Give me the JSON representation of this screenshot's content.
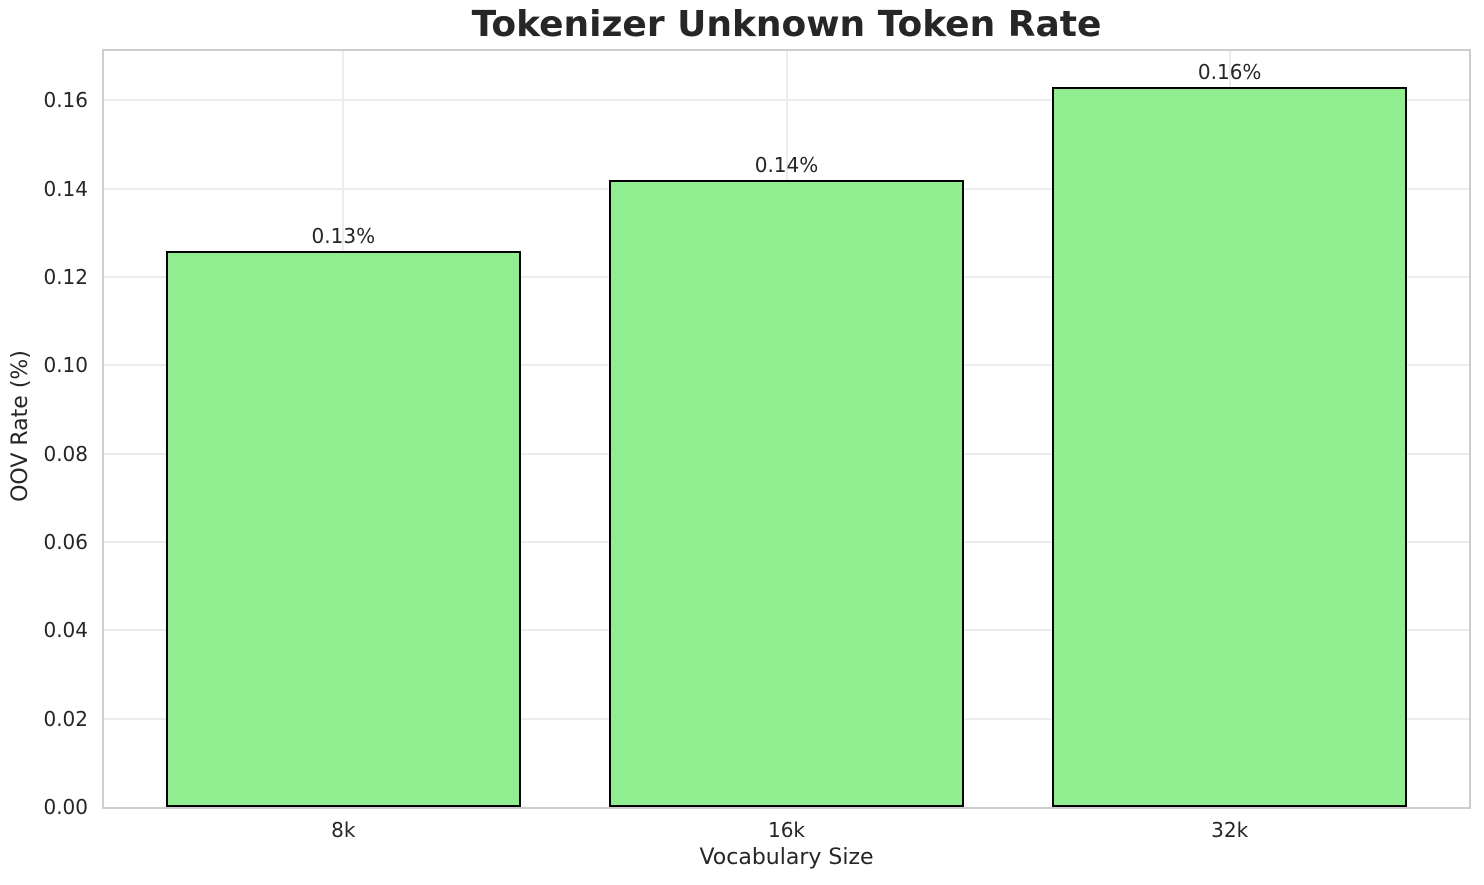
{
  "chart_data": {
    "type": "bar",
    "title": "Tokenizer Unknown Token Rate",
    "xlabel": "Vocabulary Size",
    "ylabel": "OOV Rate (%)",
    "categories": [
      "8k",
      "16k",
      "32k"
    ],
    "values": [
      0.126,
      0.142,
      0.163
    ],
    "bar_labels": [
      "0.13%",
      "0.14%",
      "0.16%"
    ],
    "yticks": [
      0,
      0.02,
      0.04,
      0.06,
      0.08,
      0.1,
      0.12,
      0.14,
      0.16
    ],
    "ytick_labels": [
      "0.00",
      "0.02",
      "0.04",
      "0.06",
      "0.08",
      "0.10",
      "0.12",
      "0.14",
      "0.16"
    ],
    "ylim": [
      0,
      0.1712
    ],
    "bar_width_fraction": 0.8,
    "grid": true,
    "legend_position": null,
    "colors": {
      "bar_fill": "#90ee90",
      "bar_edge": "#000000",
      "grid_line": "#ececec",
      "spine": "#cdcdcd",
      "text": "#262626",
      "background": "#ffffff"
    }
  }
}
